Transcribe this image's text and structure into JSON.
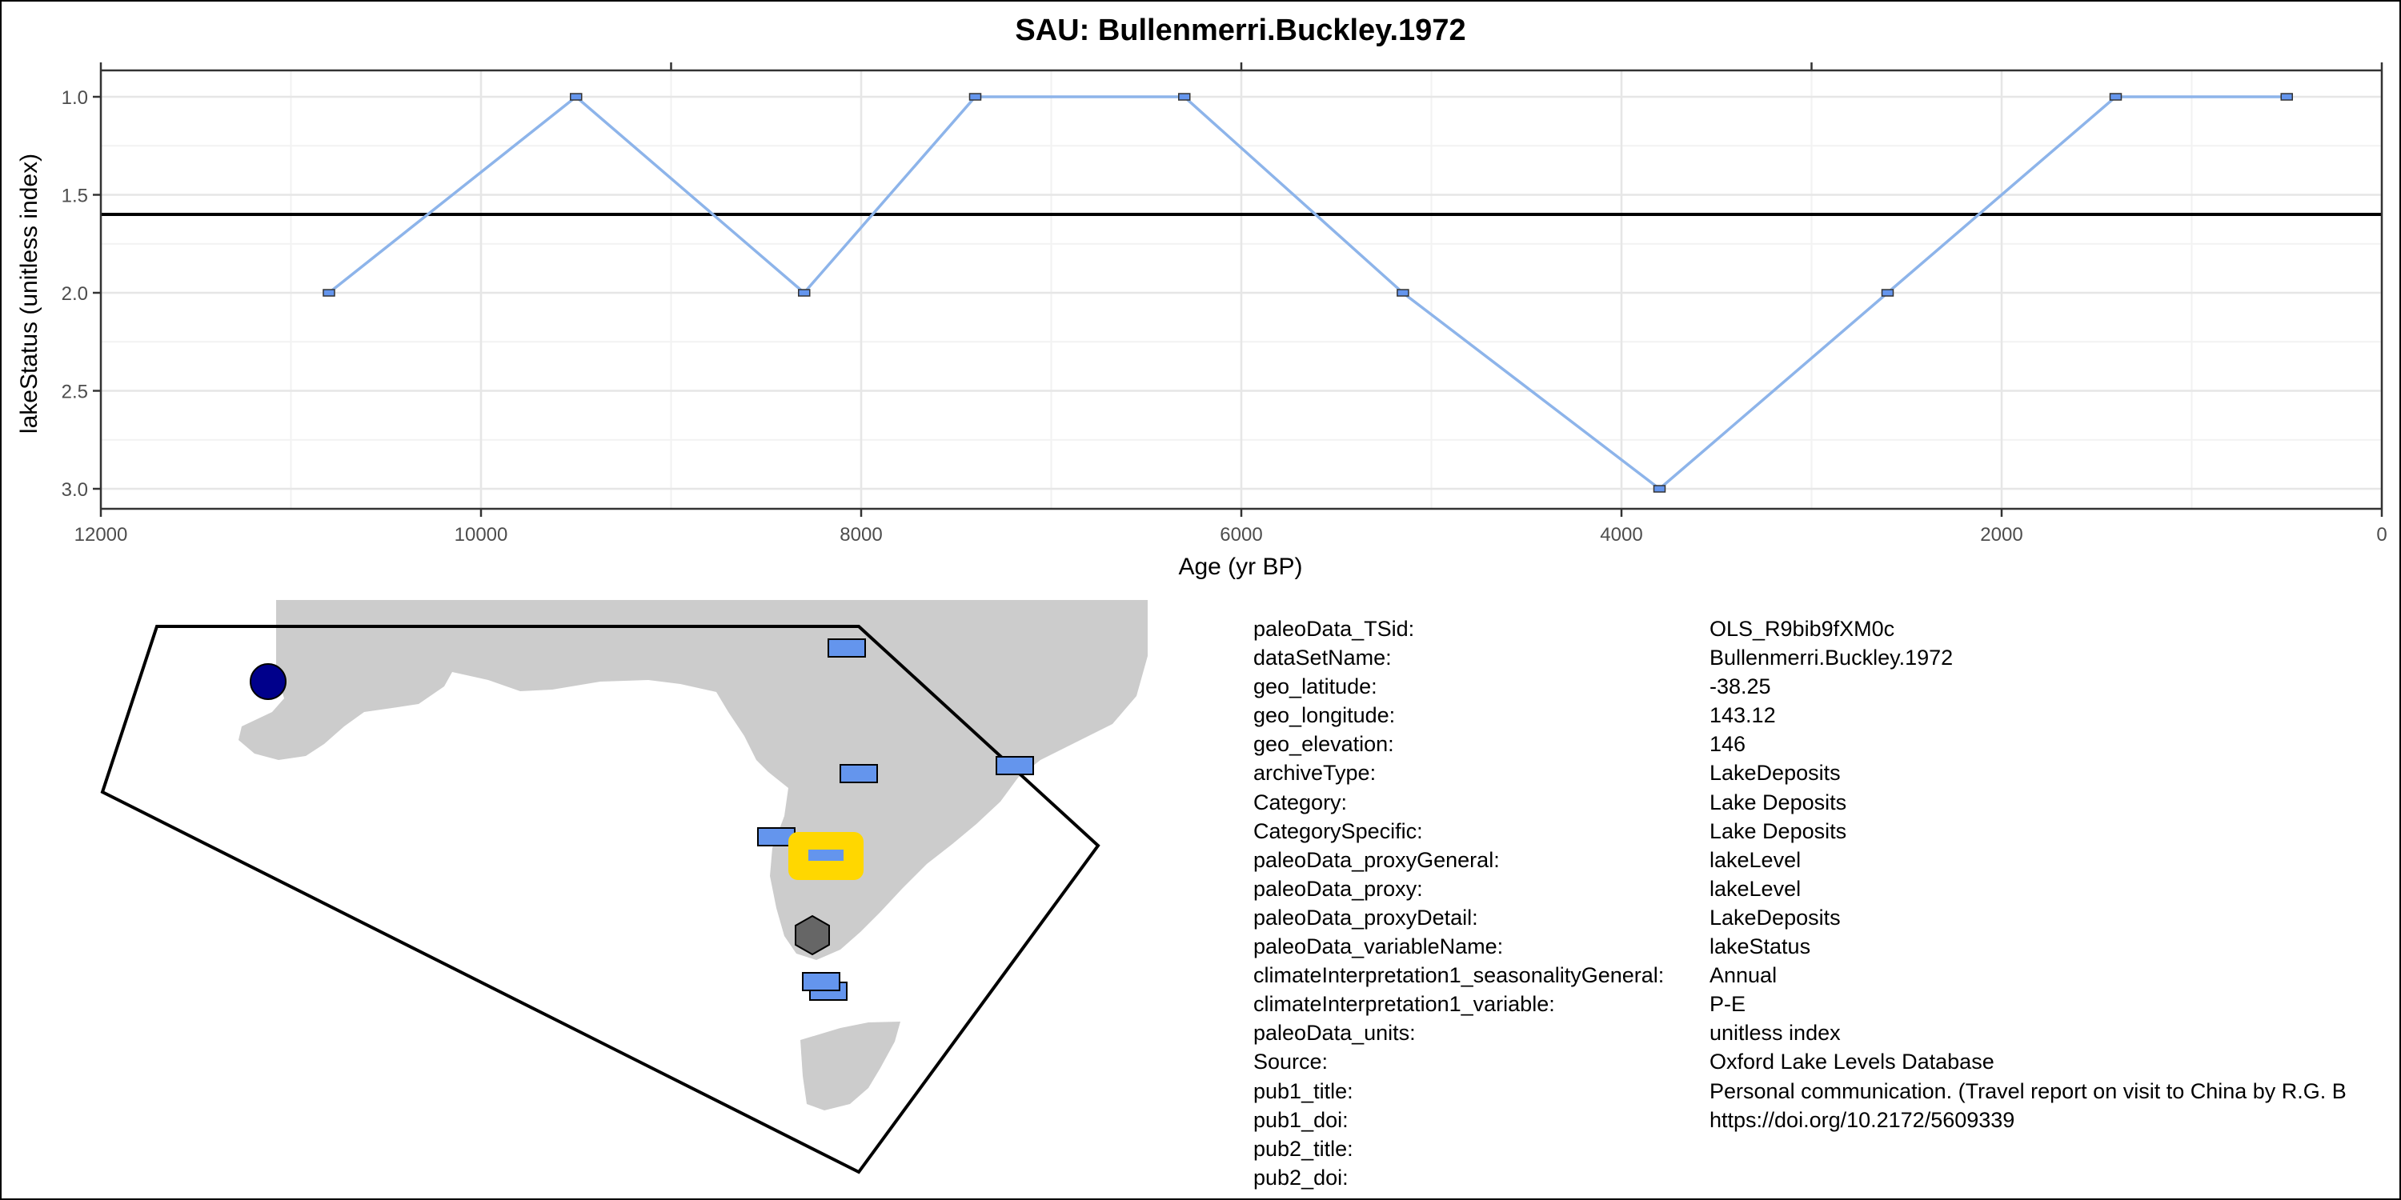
{
  "chart_data": {
    "type": "line",
    "title": "SAU: Bullenmerri.Buckley.1972",
    "xlabel": "Age (yr BP)",
    "ylabel": "lakeStatus (unitless index)",
    "xlim": [
      12000,
      0
    ],
    "ylim": [
      3.0,
      1.0
    ],
    "x_reversed": true,
    "y_reversed": true,
    "grid": true,
    "x_ticks": [
      12000,
      10000,
      8000,
      6000,
      4000,
      2000,
      0
    ],
    "x_tick_labels": [
      "12000",
      "10000",
      "8000",
      "6000",
      "4000",
      "2000",
      "0"
    ],
    "y_ticks": [
      1.0,
      1.5,
      2.0,
      2.5,
      3.0
    ],
    "y_tick_labels": [
      "1.0",
      "1.5",
      "2.0",
      "2.5",
      "3.0"
    ],
    "top_axis_ticks": [
      9000,
      6000,
      3000
    ],
    "reference_line": 1.6,
    "line_color": "#8db4ea",
    "marker_color": "#6495ed",
    "series": [
      {
        "x": [
          10800,
          9500,
          8300,
          7400,
          6300,
          5150,
          3800,
          2600,
          1400,
          500
        ],
        "y": [
          2.0,
          1.0,
          2.0,
          1.0,
          1.0,
          2.0,
          3.0,
          2.0,
          1.0,
          1.0
        ]
      }
    ]
  },
  "map": {
    "land_color": "#cccccc",
    "site_color": "#6495ed",
    "highlight_color": "#ffd700",
    "circle_color": "#00008b",
    "hexagon_color": "#666666"
  },
  "metadata": [
    {
      "key": "paleoData_TSid:",
      "value": "OLS_R9bib9fXM0c"
    },
    {
      "key": "dataSetName:",
      "value": "Bullenmerri.Buckley.1972"
    },
    {
      "key": "geo_latitude:",
      "value": "-38.25"
    },
    {
      "key": "geo_longitude:",
      "value": "143.12"
    },
    {
      "key": "geo_elevation:",
      "value": "146"
    },
    {
      "key": "archiveType:",
      "value": "LakeDeposits"
    },
    {
      "key": "Category:",
      "value": "Lake Deposits"
    },
    {
      "key": "CategorySpecific:",
      "value": "Lake Deposits"
    },
    {
      "key": "paleoData_proxyGeneral:",
      "value": "lakeLevel"
    },
    {
      "key": "paleoData_proxy:",
      "value": "lakeLevel"
    },
    {
      "key": "paleoData_proxyDetail:",
      "value": "LakeDeposits"
    },
    {
      "key": "paleoData_variableName:",
      "value": "lakeStatus"
    },
    {
      "key": "climateInterpretation1_seasonalityGeneral:",
      "value": "Annual"
    },
    {
      "key": "climateInterpretation1_variable:",
      "value": "P-E"
    },
    {
      "key": "paleoData_units:",
      "value": "unitless index"
    },
    {
      "key": "Source:",
      "value": "Oxford Lake Levels Database"
    },
    {
      "key": "pub1_title:",
      "value": "Personal communication. (Travel report on visit to China by R.G. B"
    },
    {
      "key": "pub1_doi:",
      "value": "https://doi.org/10.2172/5609339"
    },
    {
      "key": "pub2_title:",
      "value": ""
    },
    {
      "key": "pub2_doi:",
      "value": ""
    }
  ]
}
